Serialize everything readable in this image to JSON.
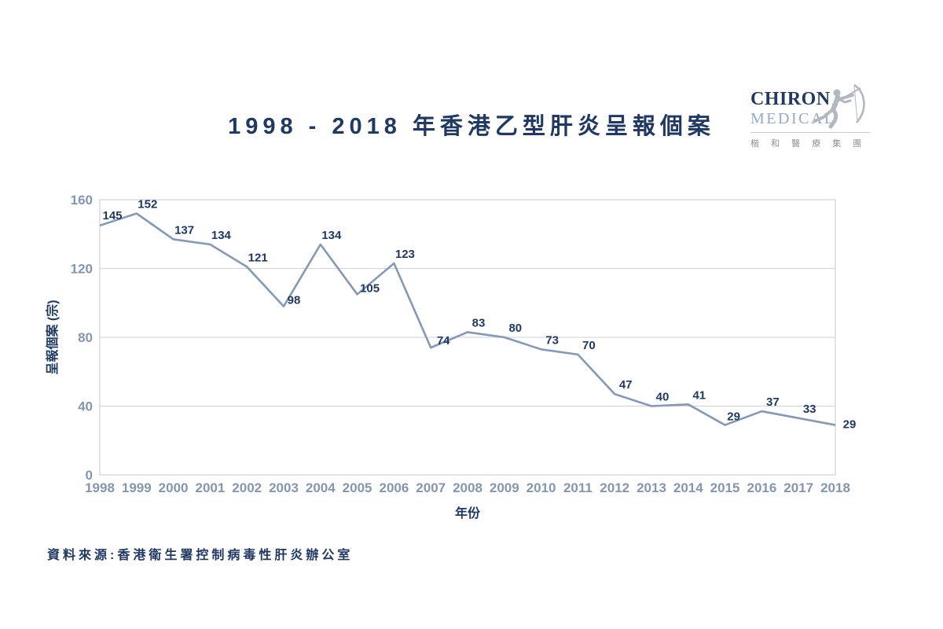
{
  "title": "1998 - 2018 年香港乙型肝炎呈報個案",
  "logo": {
    "name_line1": "CHIRON",
    "name_line2": "MEDICAL",
    "name_cjk": "楷 和 醫 療 集 團",
    "color_primary": "#223a63",
    "color_secondary": "#93aac9",
    "color_grey": "#b2b8c0"
  },
  "chart_data": {
    "type": "line",
    "title": "1998 - 2018 年香港乙型肝炎呈報個案",
    "xlabel": "年份",
    "ylabel": "呈報個案 (宗)",
    "categories": [
      "1998",
      "1999",
      "2000",
      "2001",
      "2002",
      "2003",
      "2004",
      "2005",
      "2006",
      "2007",
      "2008",
      "2009",
      "2010",
      "2011",
      "2012",
      "2013",
      "2014",
      "2015",
      "2016",
      "2017",
      "2018"
    ],
    "values": [
      145,
      152,
      137,
      134,
      121,
      98,
      134,
      105,
      123,
      74,
      83,
      80,
      73,
      70,
      47,
      40,
      41,
      29,
      37,
      33,
      29
    ],
    "ylim": [
      0,
      160
    ],
    "yticks": [
      0,
      40,
      80,
      120,
      160
    ],
    "grid": true,
    "legend": "none",
    "line_color": "#8499b8",
    "data_label_color": "#1f3864",
    "tick_label_color": "#8496b0",
    "grid_color": "#cfd2d6",
    "label_offsets": {
      "0": [
        16,
        -8
      ],
      "5": [
        13,
        -3
      ],
      "7": [
        16,
        -3
      ],
      "9": [
        16,
        -4
      ],
      "17": [
        11,
        -6
      ],
      "20": [
        18,
        4
      ]
    }
  },
  "source": "資料來源:香港衛生署控制病毒性肝炎辦公室"
}
